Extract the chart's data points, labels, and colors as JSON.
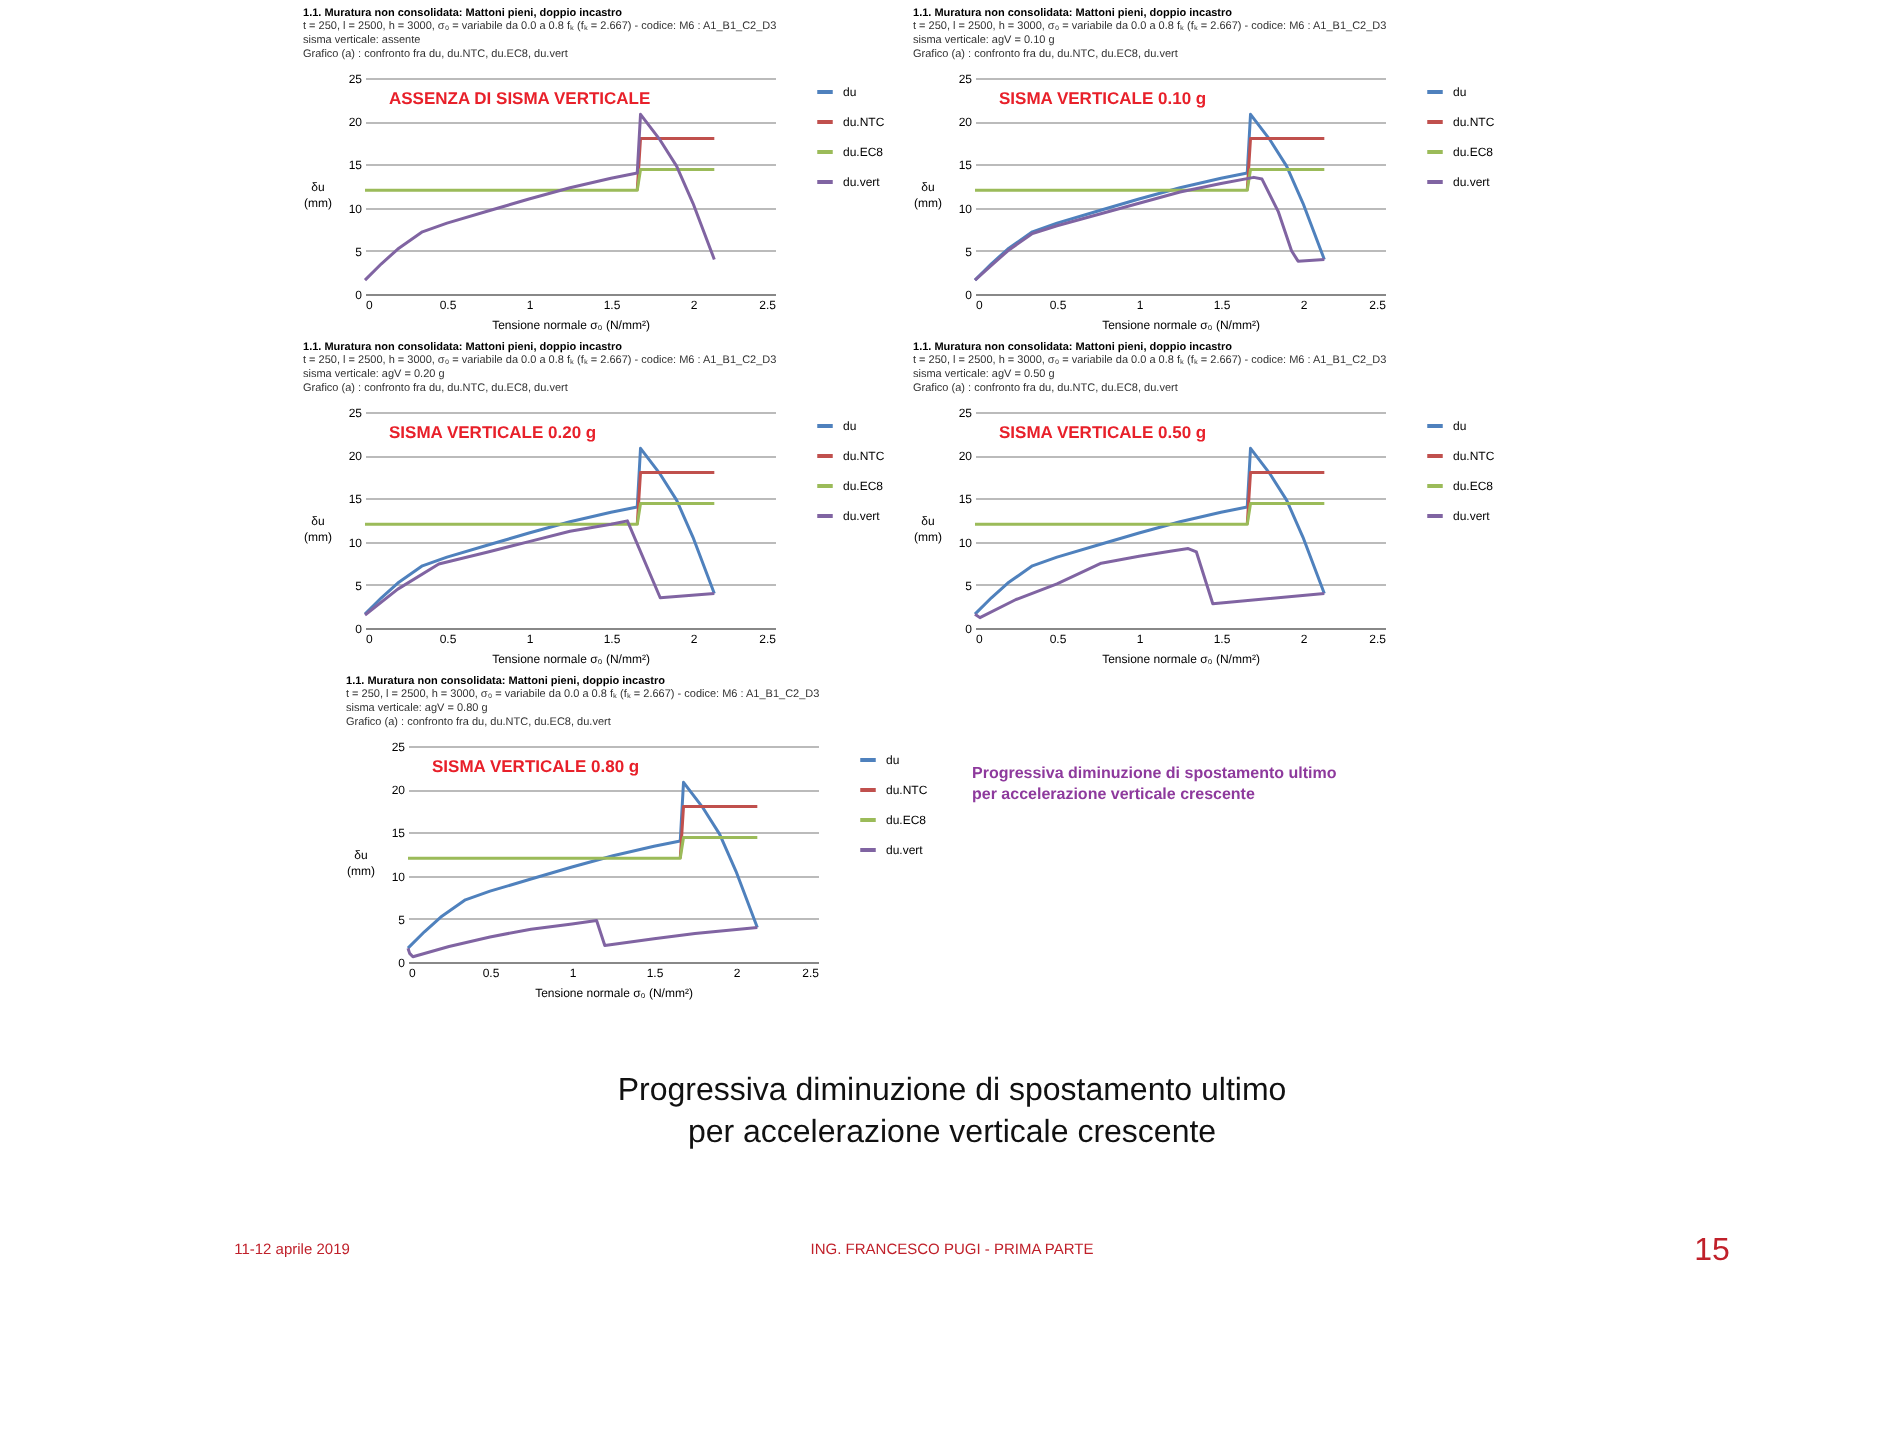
{
  "chart_data": [
    {
      "type": "line",
      "title": "1.1. Muratura non consolidata: Mattoni pieni, doppio incastro",
      "subtitle": "t = 250, l = 2500, h = 3000, σ₀ = variabile da 0.0 a 0.8 fₖ (fₖ = 2.667) - codice: M6 : A1_B1_C2_D3\nsisma verticale: assente\nGrafico (a) : confronto fra du, du.NTC, du.EC8, du.vert",
      "annotations": [
        "ASSENZA DI SISMA VERTICALE"
      ],
      "xlabel": "Tensione normale σ₀ (N/mm²)",
      "ylabel": "δu\n(mm)",
      "xlim": [
        0,
        2.5
      ],
      "xticks": [
        0,
        0.5,
        1,
        1.5,
        2,
        2.5
      ],
      "ylim": [
        0,
        25
      ],
      "yticks": [
        0,
        5,
        10,
        15,
        20,
        25
      ],
      "grid": "y",
      "legend": "right",
      "series": [
        {
          "name": "du",
          "color": "#4f81bd"
        },
        {
          "name": "du.NTC",
          "color": "#c0504d",
          "x": [
            1.66,
            1.68,
            2.13
          ],
          "values": [
            12,
            18,
            18
          ]
        },
        {
          "name": "du.EC8",
          "color": "#9bbb59",
          "x": [
            0,
            1.66,
            1.68,
            2.13
          ],
          "values": [
            12,
            12,
            14.4,
            14.4
          ]
        },
        {
          "name": "du.vert",
          "color": "#8064a2",
          "x": [
            0,
            0.1,
            0.2,
            0.35,
            0.5,
            0.75,
            1.0,
            1.25,
            1.5,
            1.66,
            1.68,
            1.8,
            1.9,
            2.0,
            2.13
          ],
          "values": [
            1.6,
            3.5,
            5.2,
            7.2,
            8.2,
            9.6,
            11.0,
            12.3,
            13.4,
            14.0,
            20.8,
            17.8,
            14.8,
            10.5,
            4.0
          ]
        }
      ]
    },
    {
      "type": "line",
      "title": "1.1. Muratura non consolidata: Mattoni pieni, doppio incastro",
      "subtitle": "t = 250, l = 2500, h = 3000, σ₀ = variabile da 0.0 a 0.8 fₖ (fₖ = 2.667) - codice: M6 : A1_B1_C2_D3\nsisma verticale: agV = 0.10 g\nGrafico (a) : confronto fra du, du.NTC, du.EC8, du.vert",
      "annotations": [
        "SISMA VERTICALE  0.10 g"
      ],
      "xlabel": "Tensione normale σ₀ (N/mm²)",
      "ylabel": "δu\n(mm)",
      "xlim": [
        0,
        2.5
      ],
      "xticks": [
        0,
        0.5,
        1,
        1.5,
        2,
        2.5
      ],
      "ylim": [
        0,
        25
      ],
      "yticks": [
        0,
        5,
        10,
        15,
        20,
        25
      ],
      "grid": "y",
      "legend": "right",
      "series": [
        {
          "name": "du",
          "color": "#4f81bd",
          "x": [
            0,
            0.1,
            0.2,
            0.35,
            0.5,
            0.75,
            1.0,
            1.25,
            1.5,
            1.66,
            1.68,
            1.8,
            1.9,
            2.0,
            2.13
          ],
          "values": [
            1.6,
            3.5,
            5.2,
            7.2,
            8.2,
            9.6,
            11.0,
            12.3,
            13.4,
            14.0,
            20.8,
            17.8,
            14.8,
            10.5,
            4.0
          ]
        },
        {
          "name": "du.NTC",
          "color": "#c0504d",
          "x": [
            1.66,
            1.68,
            2.13
          ],
          "values": [
            12,
            18,
            18
          ]
        },
        {
          "name": "du.EC8",
          "color": "#9bbb59",
          "x": [
            0,
            1.66,
            1.68,
            2.13
          ],
          "values": [
            12,
            12,
            14.4,
            14.4
          ]
        },
        {
          "name": "du.vert",
          "color": "#8064a2",
          "x": [
            0,
            0.1,
            0.2,
            0.35,
            0.5,
            0.75,
            1.0,
            1.25,
            1.5,
            1.7,
            1.75,
            1.85,
            1.93,
            1.97,
            2.13
          ],
          "values": [
            1.6,
            3.3,
            5.0,
            7.0,
            7.9,
            9.2,
            10.5,
            11.8,
            12.8,
            13.5,
            13.3,
            9.5,
            5.0,
            3.8,
            4.0
          ]
        }
      ]
    },
    {
      "type": "line",
      "title": "1.1. Muratura non consolidata: Mattoni pieni, doppio incastro",
      "subtitle": "t = 250, l = 2500, h = 3000, σ₀ = variabile da 0.0 a 0.8 fₖ (fₖ = 2.667) - codice: M6 : A1_B1_C2_D3\nsisma verticale: agV = 0.20 g\nGrafico (a) : confronto fra du, du.NTC, du.EC8, du.vert",
      "annotations": [
        "SISMA VERTICALE  0.20 g"
      ],
      "xlabel": "Tensione normale σ₀ (N/mm²)",
      "ylabel": "δu\n(mm)",
      "xlim": [
        0,
        2.5
      ],
      "xticks": [
        0,
        0.5,
        1,
        1.5,
        2,
        2.5
      ],
      "ylim": [
        0,
        25
      ],
      "yticks": [
        0,
        5,
        10,
        15,
        20,
        25
      ],
      "grid": "y",
      "legend": "right",
      "series": [
        {
          "name": "du",
          "color": "#4f81bd",
          "x": [
            0,
            0.1,
            0.2,
            0.35,
            0.5,
            0.75,
            1.0,
            1.25,
            1.5,
            1.66,
            1.68,
            1.8,
            1.9,
            2.0,
            2.13
          ],
          "values": [
            1.6,
            3.5,
            5.2,
            7.2,
            8.2,
            9.6,
            11.0,
            12.3,
            13.4,
            14.0,
            20.8,
            17.8,
            14.8,
            10.5,
            4.0
          ]
        },
        {
          "name": "du.NTC",
          "color": "#c0504d",
          "x": [
            1.66,
            1.68,
            2.13
          ],
          "values": [
            12,
            18,
            18
          ]
        },
        {
          "name": "du.EC8",
          "color": "#9bbb59",
          "x": [
            0,
            1.66,
            1.68,
            2.13
          ],
          "values": [
            12,
            12,
            14.4,
            14.4
          ]
        },
        {
          "name": "du.vert",
          "color": "#8064a2",
          "x": [
            0,
            0.2,
            0.45,
            0.75,
            1.0,
            1.25,
            1.5,
            1.6,
            1.8,
            2.13
          ],
          "values": [
            1.5,
            4.5,
            7.4,
            8.8,
            10.0,
            11.2,
            12.0,
            12.4,
            3.5,
            4.0
          ]
        }
      ]
    },
    {
      "type": "line",
      "title": "1.1. Muratura non consolidata: Mattoni pieni, doppio incastro",
      "subtitle": "t = 250, l = 2500, h = 3000, σ₀ = variabile da 0.0 a 0.8 fₖ (fₖ = 2.667) - codice: M6 : A1_B1_C2_D3\nsisma verticale: agV = 0.50 g\nGrafico (a) : confronto fra du, du.NTC, du.EC8, du.vert",
      "annotations": [
        "SISMA VERTICALE  0.50 g"
      ],
      "xlabel": "Tensione normale σ₀ (N/mm²)",
      "ylabel": "δu\n(mm)",
      "xlim": [
        0,
        2.5
      ],
      "xticks": [
        0,
        0.5,
        1,
        1.5,
        2,
        2.5
      ],
      "ylim": [
        0,
        25
      ],
      "yticks": [
        0,
        5,
        10,
        15,
        20,
        25
      ],
      "grid": "y",
      "legend": "right",
      "series": [
        {
          "name": "du",
          "color": "#4f81bd",
          "x": [
            0,
            0.1,
            0.2,
            0.35,
            0.5,
            0.75,
            1.0,
            1.25,
            1.5,
            1.66,
            1.68,
            1.8,
            1.9,
            2.0,
            2.13
          ],
          "values": [
            1.6,
            3.5,
            5.2,
            7.2,
            8.2,
            9.6,
            11.0,
            12.3,
            13.4,
            14.0,
            20.8,
            17.8,
            14.8,
            10.5,
            4.0
          ]
        },
        {
          "name": "du.NTC",
          "color": "#c0504d",
          "x": [
            1.66,
            1.68,
            2.13
          ],
          "values": [
            12,
            18,
            18
          ]
        },
        {
          "name": "du.EC8",
          "color": "#9bbb59",
          "x": [
            0,
            1.66,
            1.68,
            2.13
          ],
          "values": [
            12,
            12,
            14.4,
            14.4
          ]
        },
        {
          "name": "du.vert",
          "color": "#8064a2",
          "x": [
            0,
            0.03,
            0.25,
            0.5,
            0.77,
            1.0,
            1.2,
            1.3,
            1.35,
            1.45,
            2.13
          ],
          "values": [
            1.6,
            1.2,
            3.3,
            5.1,
            7.5,
            8.3,
            8.9,
            9.2,
            8.8,
            2.8,
            4.0
          ]
        }
      ]
    },
    {
      "type": "line",
      "title": "1.1. Muratura non consolidata: Mattoni pieni, doppio incastro",
      "subtitle": "t = 250, l = 2500, h = 3000, σ₀ = variabile da 0.0 a 0.8 fₖ (fₖ = 2.667) - codice: M6 : A1_B1_C2_D3\nsisma verticale: agV = 0.80 g\nGrafico (a) : confronto fra du, du.NTC, du.EC8, du.vert",
      "annotations": [
        "SISMA VERTICALE  0.80 g"
      ],
      "xlabel": "Tensione normale σ₀ (N/mm²)",
      "ylabel": "δu\n(mm)",
      "xlim": [
        0,
        2.5
      ],
      "xticks": [
        0,
        0.5,
        1,
        1.5,
        2,
        2.5
      ],
      "ylim": [
        0,
        25
      ],
      "yticks": [
        0,
        5,
        10,
        15,
        20,
        25
      ],
      "grid": "y",
      "legend": "right",
      "series": [
        {
          "name": "du",
          "color": "#4f81bd",
          "x": [
            0,
            0.1,
            0.2,
            0.35,
            0.5,
            0.75,
            1.0,
            1.25,
            1.5,
            1.66,
            1.68,
            1.8,
            1.9,
            2.0,
            2.13
          ],
          "values": [
            1.6,
            3.5,
            5.2,
            7.2,
            8.2,
            9.6,
            11.0,
            12.3,
            13.4,
            14.0,
            20.8,
            17.8,
            14.8,
            10.5,
            4.0
          ]
        },
        {
          "name": "du.NTC",
          "color": "#c0504d",
          "x": [
            1.66,
            1.68,
            2.13
          ],
          "values": [
            12,
            18,
            18
          ]
        },
        {
          "name": "du.EC8",
          "color": "#9bbb59",
          "x": [
            0,
            1.66,
            1.68,
            2.13
          ],
          "values": [
            12,
            12,
            14.4,
            14.4
          ]
        },
        {
          "name": "du.vert",
          "color": "#8064a2",
          "x": [
            0,
            0.01,
            0.03,
            0.25,
            0.5,
            0.75,
            1.0,
            1.15,
            1.2,
            1.5,
            1.75,
            2.13
          ],
          "values": [
            1.6,
            1.0,
            0.6,
            1.8,
            2.9,
            3.8,
            4.4,
            4.8,
            1.9,
            2.7,
            3.3,
            4.0
          ]
        }
      ]
    },
    {
      "type": "other",
      "annotations": [
        "Progressiva diminuzione di spostamento ultimo\nper accelerazione verticale crescente"
      ]
    },
    {
      "type": "other",
      "annotations": [
        "Progressiva diminuzione di spostamento ultimo\nper accelerazione verticale crescente",
        "11-12 aprile 2019",
        "ING. FRANCESCO PUGI - PRIMA PARTE",
        "15"
      ]
    }
  ]
}
